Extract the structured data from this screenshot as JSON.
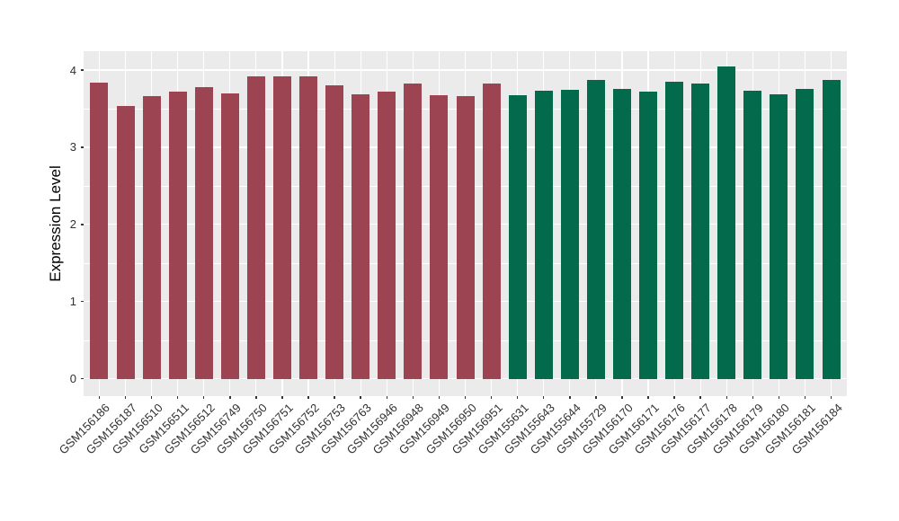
{
  "chart_data": {
    "type": "bar",
    "title": "",
    "xlabel": "",
    "ylabel": "Expression Level",
    "ylim": [
      0,
      4.25
    ],
    "yticks": [
      0,
      1,
      2,
      3,
      4
    ],
    "minor_tick_step": 0.5,
    "grid": "on",
    "legend_position": "none",
    "panel_background": "#EBEBEB",
    "grid_color": "#FFFFFF",
    "axis_text_color": "#303030",
    "group_colors": {
      "group1": "#9D4452",
      "group2": "#036A4B"
    },
    "bars": [
      {
        "label": "GSM156186",
        "value": 3.84,
        "group": "group1"
      },
      {
        "label": "GSM156187",
        "value": 3.54,
        "group": "group1"
      },
      {
        "label": "GSM156510",
        "value": 3.66,
        "group": "group1"
      },
      {
        "label": "GSM156511",
        "value": 3.72,
        "group": "group1"
      },
      {
        "label": "GSM156512",
        "value": 3.78,
        "group": "group1"
      },
      {
        "label": "GSM156749",
        "value": 3.7,
        "group": "group1"
      },
      {
        "label": "GSM156750",
        "value": 3.92,
        "group": "group1"
      },
      {
        "label": "GSM156751",
        "value": 3.92,
        "group": "group1"
      },
      {
        "label": "GSM156752",
        "value": 3.92,
        "group": "group1"
      },
      {
        "label": "GSM156753",
        "value": 3.8,
        "group": "group1"
      },
      {
        "label": "GSM156763",
        "value": 3.69,
        "group": "group1"
      },
      {
        "label": "GSM156946",
        "value": 3.72,
        "group": "group1"
      },
      {
        "label": "GSM156948",
        "value": 3.82,
        "group": "group1"
      },
      {
        "label": "GSM156949",
        "value": 3.67,
        "group": "group1"
      },
      {
        "label": "GSM156950",
        "value": 3.66,
        "group": "group1"
      },
      {
        "label": "GSM156951",
        "value": 3.82,
        "group": "group1"
      },
      {
        "label": "GSM155631",
        "value": 3.67,
        "group": "group2"
      },
      {
        "label": "GSM155643",
        "value": 3.73,
        "group": "group2"
      },
      {
        "label": "GSM155644",
        "value": 3.74,
        "group": "group2"
      },
      {
        "label": "GSM155729",
        "value": 3.87,
        "group": "group2"
      },
      {
        "label": "GSM156170",
        "value": 3.76,
        "group": "group2"
      },
      {
        "label": "GSM156171",
        "value": 3.72,
        "group": "group2"
      },
      {
        "label": "GSM156176",
        "value": 3.85,
        "group": "group2"
      },
      {
        "label": "GSM156177",
        "value": 3.82,
        "group": "group2"
      },
      {
        "label": "GSM156178",
        "value": 4.05,
        "group": "group2"
      },
      {
        "label": "GSM156179",
        "value": 3.73,
        "group": "group2"
      },
      {
        "label": "GSM156180",
        "value": 3.69,
        "group": "group2"
      },
      {
        "label": "GSM156181",
        "value": 3.76,
        "group": "group2"
      },
      {
        "label": "GSM156184",
        "value": 3.87,
        "group": "group2"
      }
    ]
  }
}
